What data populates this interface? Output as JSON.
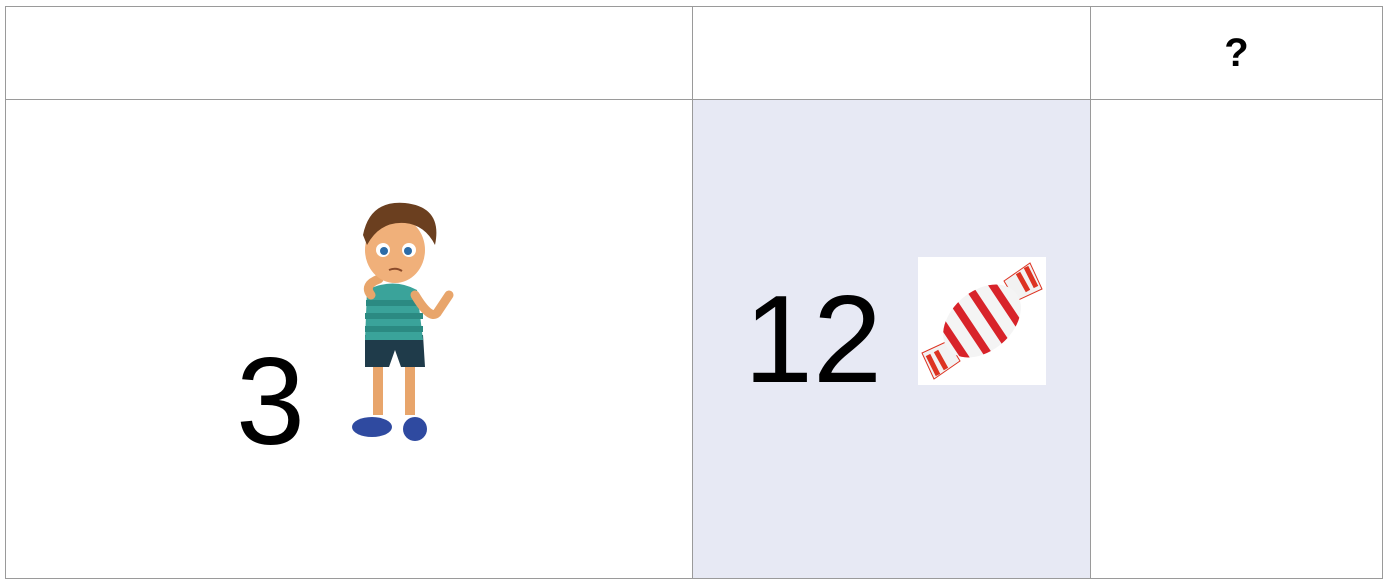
{
  "table": {
    "header": {
      "cell_3": "?"
    },
    "rows": [
      {
        "cell_1": "3",
        "cell_2": "12"
      }
    ]
  }
}
